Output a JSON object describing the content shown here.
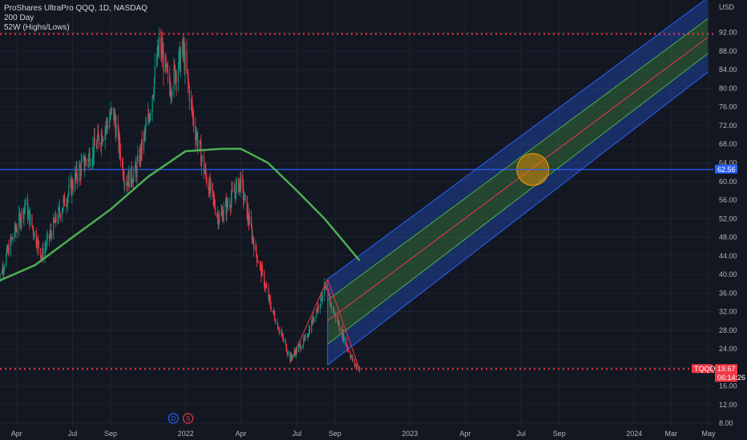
{
  "legend": {
    "title": "ProShares UltraPro QQQ, 1D, NASDAQ",
    "line2": "200 Day",
    "line3": "52W (Highs/Lows)"
  },
  "chart_data": {
    "type": "candlestick",
    "currency": "USD",
    "ylim": [
      7.5,
      99
    ],
    "y_ticks": [
      "92.00",
      "88.00",
      "84.00",
      "80.00",
      "76.00",
      "72.00",
      "68.00",
      "64.00",
      "60.00",
      "56.00",
      "52.00",
      "48.00",
      "44.00",
      "40.00",
      "36.00",
      "32.00",
      "28.00",
      "24.00",
      "20.00",
      "16.00",
      "12.00",
      "8.00"
    ],
    "x_ticks": [
      "Apr",
      "Jul",
      "Sep",
      "2022",
      "Apr",
      "Jul",
      "Sep",
      "2023",
      "Apr",
      "Jul",
      "Sep",
      "2024",
      "Mar",
      "May"
    ],
    "x_tick_dates": [
      "2021-04-01",
      "2021-07-01",
      "2021-09-01",
      "2022-01-01",
      "2022-04-01",
      "2022-07-01",
      "2022-09-01",
      "2023-01-01",
      "2023-04-01",
      "2023-07-01",
      "2023-09-01",
      "2024-01-01",
      "2024-03-01",
      "2024-05-01"
    ],
    "price_path": [
      [
        "2021-03-01",
        38
      ],
      [
        "2021-03-20",
        46
      ],
      [
        "2021-04-15",
        55
      ],
      [
        "2021-05-12",
        44
      ],
      [
        "2021-06-05",
        52
      ],
      [
        "2021-07-10",
        62
      ],
      [
        "2021-08-05",
        67
      ],
      [
        "2021-09-05",
        75
      ],
      [
        "2021-09-25",
        60
      ],
      [
        "2021-10-12",
        62
      ],
      [
        "2021-11-01",
        73
      ],
      [
        "2021-11-20",
        90
      ],
      [
        "2021-12-05",
        80
      ],
      [
        "2021-12-28",
        88
      ],
      [
        "2022-01-15",
        72
      ],
      [
        "2022-02-01",
        62
      ],
      [
        "2022-02-24",
        52
      ],
      [
        "2022-03-10",
        55
      ],
      [
        "2022-03-31",
        60
      ],
      [
        "2022-04-25",
        45
      ],
      [
        "2022-05-20",
        33
      ],
      [
        "2022-06-20",
        22
      ],
      [
        "2022-07-15",
        26
      ],
      [
        "2022-08-15",
        37
      ],
      [
        "2022-09-05",
        30
      ],
      [
        "2022-10-01",
        21
      ],
      [
        "2022-10-11",
        19.67
      ]
    ],
    "series": [
      {
        "name": "200 Day",
        "color": "#4caf50",
        "points": [
          [
            "2021-03-01",
            38.5
          ],
          [
            "2021-05-01",
            42
          ],
          [
            "2021-07-01",
            48
          ],
          [
            "2021-09-01",
            54
          ],
          [
            "2021-11-01",
            61
          ],
          [
            "2022-01-01",
            66.5
          ],
          [
            "2022-03-01",
            67
          ],
          [
            "2022-04-01",
            67
          ],
          [
            "2022-05-15",
            64
          ],
          [
            "2022-07-01",
            58
          ],
          [
            "2022-08-15",
            52
          ],
          [
            "2022-10-11",
            43
          ]
        ]
      }
    ],
    "horizontal_lines": [
      {
        "price": 91.68,
        "color": "#f23645",
        "style": "dotted"
      },
      {
        "price": 62.56,
        "color": "#2962ff",
        "style": "solid"
      },
      {
        "price": 19.67,
        "color": "#f23645",
        "style": "dotted"
      }
    ],
    "channel": {
      "start_date": "2022-08-20",
      "end_date": "2024-04-30",
      "upper_start": 39,
      "upper_end": 99.5,
      "inner_upper_start": 34.5,
      "inner_upper_end": 95,
      "mid_start": 30,
      "mid_end": 91,
      "inner_lower_start": 25,
      "inner_lower_end": 87.5,
      "lower_start": 20.5,
      "lower_end": 83.5
    },
    "trend_lines": [
      [
        [
          "2022-06-20",
          21
        ],
        [
          "2022-08-20",
          39
        ]
      ],
      [
        [
          "2022-08-20",
          39
        ],
        [
          "2022-10-11",
          19.67
        ]
      ]
    ],
    "ellipse": {
      "date": "2023-07-20",
      "price": 62.56
    },
    "price_badges": [
      {
        "text": "62.56",
        "price": 62.56,
        "color": "#2962ff"
      },
      {
        "text": "19.67",
        "text2": "06:14:26",
        "price": 19.67,
        "color": "#f23645"
      }
    ],
    "symbol_badge": {
      "text": "TQQQ",
      "price": 19.67
    },
    "events": [
      {
        "label": "D",
        "date": "2021-12-12",
        "color": "#2962ff"
      },
      {
        "label": "S",
        "date": "2022-01-05",
        "color": "#f23645"
      }
    ]
  }
}
